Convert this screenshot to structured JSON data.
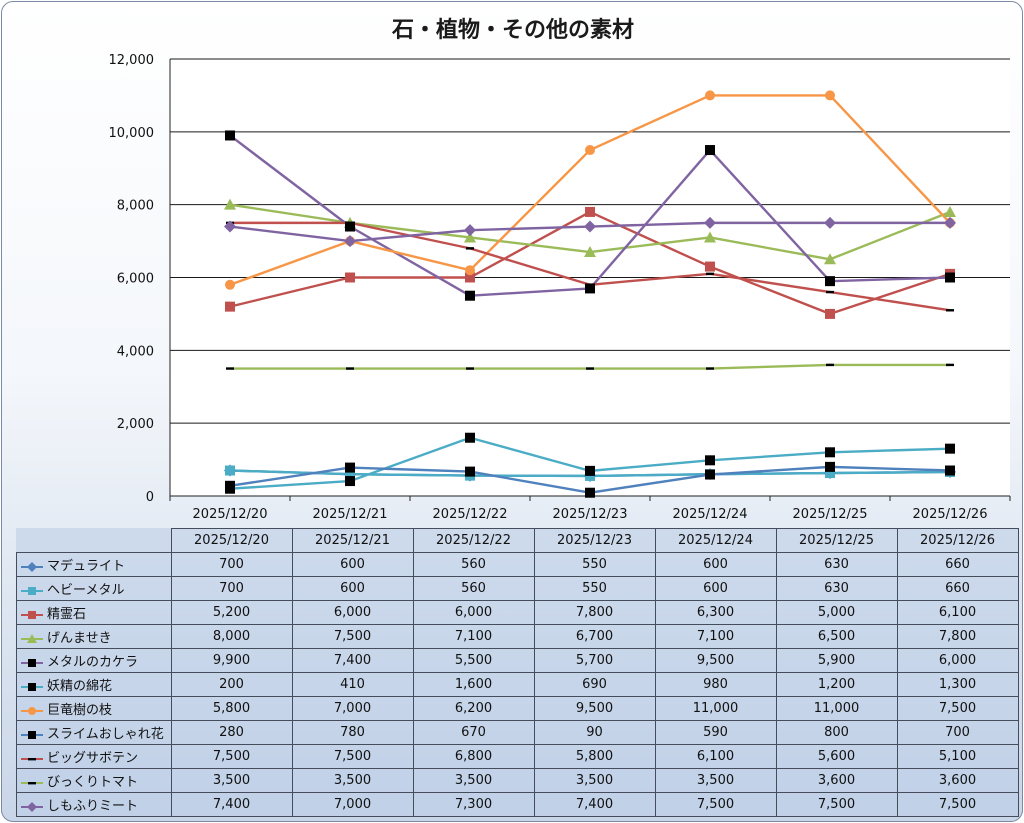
{
  "chart_data": {
    "type": "line",
    "title": "石・植物・その他の素材",
    "xlabel": "",
    "ylabel": "",
    "ylim": [
      0,
      12000
    ],
    "y_ticks": [
      0,
      2000,
      4000,
      6000,
      8000,
      10000,
      12000
    ],
    "y_tick_labels": [
      "0",
      "2,000",
      "4,000",
      "6,000",
      "8,000",
      "10,000",
      "12,000"
    ],
    "grid": true,
    "categories": [
      "2025/12/20",
      "2025/12/21",
      "2025/12/22",
      "2025/12/23",
      "2025/12/24",
      "2025/12/25",
      "2025/12/26"
    ],
    "series": [
      {
        "name": "マデュライト",
        "color": "#4f81bd",
        "marker": "diamond",
        "values": [
          700,
          600,
          560,
          550,
          600,
          630,
          660
        ],
        "labels": [
          "700",
          "600",
          "560",
          "550",
          "600",
          "630",
          "660"
        ]
      },
      {
        "name": "ヘビーメタル",
        "color": "#4bacc6",
        "marker": "square",
        "values": [
          700,
          600,
          560,
          550,
          600,
          630,
          660
        ],
        "labels": [
          "700",
          "600",
          "560",
          "550",
          "600",
          "630",
          "660"
        ]
      },
      {
        "name": "精霊石",
        "color": "#c0504d",
        "marker": "square",
        "values": [
          5200,
          6000,
          6000,
          7800,
          6300,
          5000,
          6100
        ],
        "labels": [
          "5,200",
          "6,000",
          "6,000",
          "7,800",
          "6,300",
          "5,000",
          "6,100"
        ]
      },
      {
        "name": "げんませき",
        "color": "#9bbb59",
        "marker": "triangle",
        "values": [
          8000,
          7500,
          7100,
          6700,
          7100,
          6500,
          7800
        ],
        "labels": [
          "8,000",
          "7,500",
          "7,100",
          "6,700",
          "7,100",
          "6,500",
          "7,800"
        ]
      },
      {
        "name": "メタルのカケラ",
        "color": "#8064a2",
        "marker": "blacksquare",
        "values": [
          9900,
          7400,
          5500,
          5700,
          9500,
          5900,
          6000
        ],
        "labels": [
          "9,900",
          "7,400",
          "5,500",
          "5,700",
          "9,500",
          "5,900",
          "6,000"
        ]
      },
      {
        "name": "妖精の綿花",
        "color": "#4bacc6",
        "marker": "blacksquare",
        "values": [
          200,
          410,
          1600,
          690,
          980,
          1200,
          1300
        ],
        "labels": [
          "200",
          "410",
          "1,600",
          "690",
          "980",
          "1,200",
          "1,300"
        ]
      },
      {
        "name": "巨竜樹の枝",
        "color": "#f79646",
        "marker": "circle",
        "values": [
          5800,
          7000,
          6200,
          9500,
          11000,
          11000,
          7500
        ],
        "labels": [
          "5,800",
          "7,000",
          "6,200",
          "9,500",
          "11,000",
          "11,000",
          "7,500"
        ]
      },
      {
        "name": "スライムおしゃれ花",
        "color": "#4f81bd",
        "marker": "blacksquare",
        "values": [
          280,
          780,
          670,
          90,
          590,
          800,
          700
        ],
        "labels": [
          "280",
          "780",
          "670",
          "90",
          "590",
          "800",
          "700"
        ]
      },
      {
        "name": "ビッグサボテン",
        "color": "#c0504d",
        "marker": "dash",
        "values": [
          7500,
          7500,
          6800,
          5800,
          6100,
          5600,
          5100
        ],
        "labels": [
          "7,500",
          "7,500",
          "6,800",
          "5,800",
          "6,100",
          "5,600",
          "5,100"
        ]
      },
      {
        "name": "びっくりトマト",
        "color": "#9bbb59",
        "marker": "dash",
        "values": [
          3500,
          3500,
          3500,
          3500,
          3500,
          3600,
          3600
        ],
        "labels": [
          "3,500",
          "3,500",
          "3,500",
          "3,500",
          "3,500",
          "3,600",
          "3,600"
        ]
      },
      {
        "name": "しもふりミート",
        "color": "#8064a2",
        "marker": "diamond",
        "values": [
          7400,
          7000,
          7300,
          7400,
          7500,
          7500,
          7500
        ],
        "labels": [
          "7,400",
          "7,000",
          "7,300",
          "7,400",
          "7,500",
          "7,500",
          "7,500"
        ]
      }
    ]
  }
}
